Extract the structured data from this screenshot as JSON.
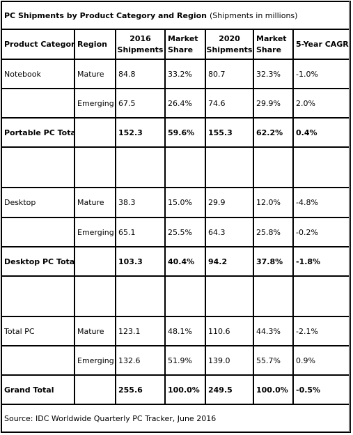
{
  "title": {
    "bold": "PC Shipments by Product Category and Region",
    "normal": "(Shipments in millions)"
  },
  "headers": {
    "category": "Product Category",
    "region": "Region",
    "s2016_l1": "2016",
    "s2016_l2": "Shipments",
    "ms2016_l1": "Market",
    "ms2016_l2": "Share",
    "s2020_l1": "2020",
    "s2020_l2": "Shipments",
    "ms2020_l1": "Market",
    "ms2020_l2": "Share",
    "cagr": "5-Year CAGR"
  },
  "rows": [
    {
      "category": "Notebook",
      "region": "Mature",
      "s2016": "84.8",
      "ms2016": "33.2%",
      "s2020": "80.7",
      "ms2020": "32.3%",
      "cagr": "-1.0%",
      "bold": false
    },
    {
      "category": "",
      "region": "Emerging",
      "s2016": "67.5",
      "ms2016": "26.4%",
      "s2020": "74.6",
      "ms2020": "29.9%",
      "cagr": "2.0%",
      "bold": false
    },
    {
      "category": "Portable PC Total",
      "region": "",
      "s2016": "152.3",
      "ms2016": "59.6%",
      "s2020": "155.3",
      "ms2020": "62.2%",
      "cagr": "0.4%",
      "bold": true
    },
    {
      "category": "",
      "region": "",
      "s2016": "",
      "ms2016": "",
      "s2020": "",
      "ms2020": "",
      "cagr": "",
      "bold": false
    },
    {
      "category": "Desktop",
      "region": "Mature",
      "s2016": "38.3",
      "ms2016": "15.0%",
      "s2020": "29.9",
      "ms2020": "12.0%",
      "cagr": "-4.8%",
      "bold": false
    },
    {
      "category": "",
      "region": "Emerging",
      "s2016": "65.1",
      "ms2016": "25.5%",
      "s2020": "64.3",
      "ms2020": "25.8%",
      "cagr": "-0.2%",
      "bold": false
    },
    {
      "category": "Desktop PC Total",
      "region": "",
      "s2016": "103.3",
      "ms2016": "40.4%",
      "s2020": "94.2",
      "ms2020": "37.8%",
      "cagr": "-1.8%",
      "bold": true
    },
    {
      "category": "",
      "region": "",
      "s2016": "",
      "ms2016": "",
      "s2020": "",
      "ms2020": "",
      "cagr": "",
      "bold": false
    },
    {
      "category": "Total PC",
      "region": "Mature",
      "s2016": "123.1",
      "ms2016": "48.1%",
      "s2020": "110.6",
      "ms2020": "44.3%",
      "cagr": "-2.1%",
      "bold": false
    },
    {
      "category": "",
      "region": "Emerging",
      "s2016": "132.6",
      "ms2016": "51.9%",
      "s2020": "139.0",
      "ms2020": "55.7%",
      "cagr": "0.9%",
      "bold": false
    },
    {
      "category": "Grand Total",
      "region": "",
      "s2016": "255.6",
      "ms2016": "100.0%",
      "s2020": "249.5",
      "ms2020": "100.0%",
      "cagr": "-0.5%",
      "bold": true
    }
  ],
  "source": "Source: IDC Worldwide Quarterly PC Tracker, June 2016"
}
